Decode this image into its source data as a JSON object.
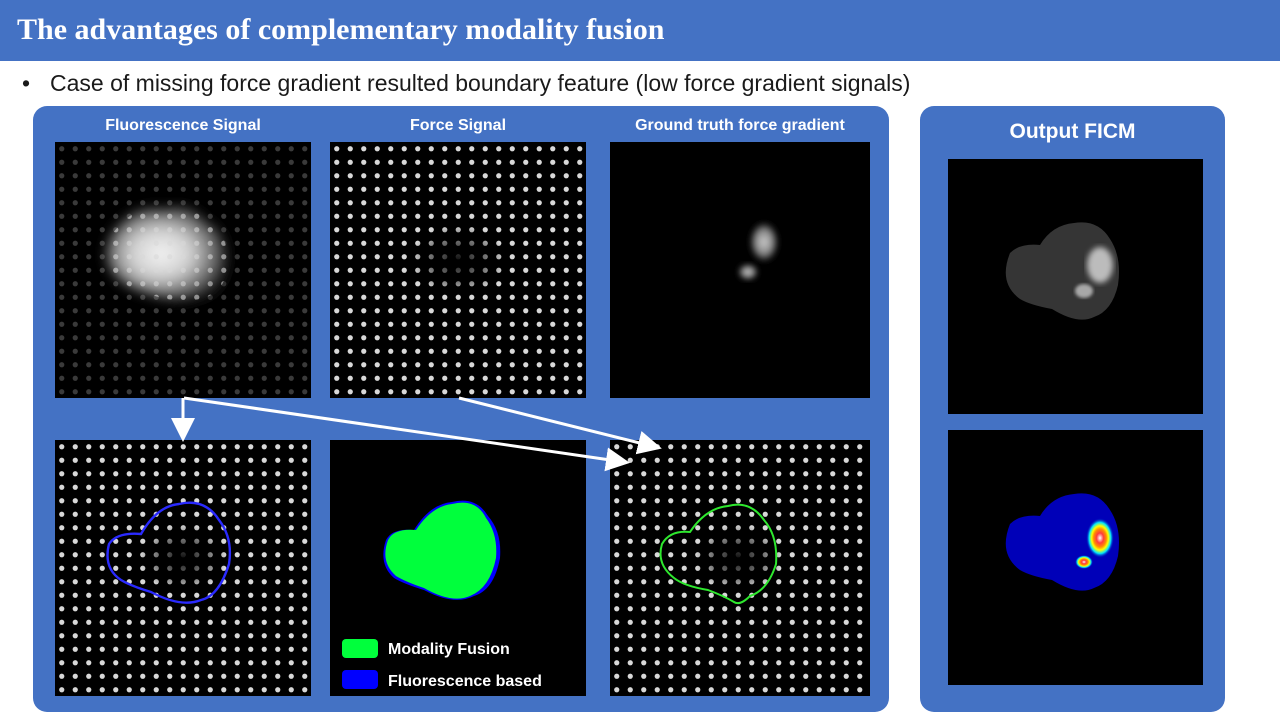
{
  "slide": {
    "title": "The advantages of complementary modality fusion",
    "bullet": "Case of missing force gradient resulted boundary feature (low force gradient signals)"
  },
  "left_panel": {
    "labels": {
      "fluorescence": "Fluorescence Signal",
      "force": "Force Signal",
      "ground_truth": "Ground  truth force gradient"
    },
    "legend": [
      {
        "label": "Modality Fusion",
        "color": "#00ff3c"
      },
      {
        "label": "Fluorescence based",
        "color": "#0000ff"
      }
    ]
  },
  "right_panel": {
    "title": "Output FICM"
  },
  "colors": {
    "accent": "#4472c4",
    "fluorescence_outline": "#2a2aff",
    "fusion_outline": "#2ee82e"
  }
}
